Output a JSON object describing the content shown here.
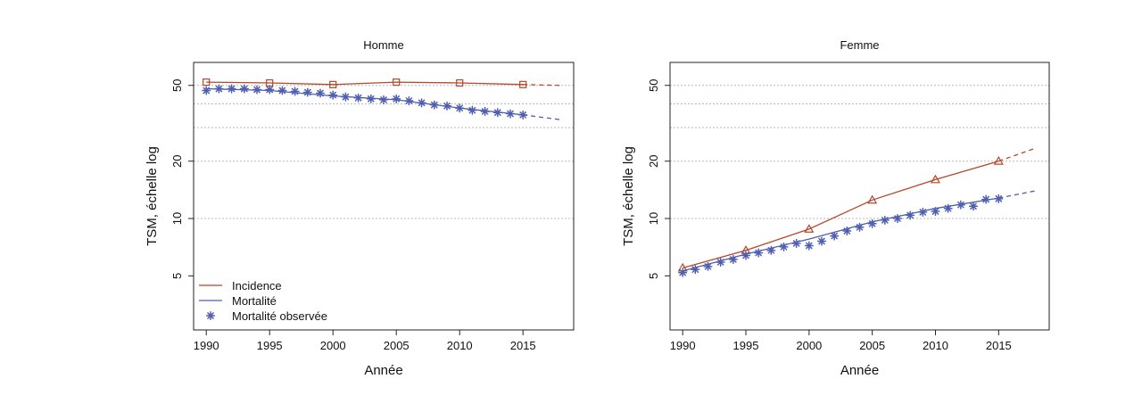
{
  "chart_data": [
    {
      "type": "line",
      "title": "Homme",
      "xlabel": "Année",
      "ylabel": "TSM, échelle log",
      "yscale": "log",
      "xlim": [
        1989,
        2019
      ],
      "ylim": [
        2.6,
        66
      ],
      "xticks": [
        "1990",
        "1995",
        "2000",
        "2005",
        "2010",
        "2015"
      ],
      "yticks": [
        "5",
        "10",
        "20",
        "50"
      ],
      "grid": true,
      "legend_position": "bottom-left",
      "legend": [
        "Incidence",
        "Mortalité",
        "Mortalité observée"
      ],
      "series": [
        {
          "name": "Incidence",
          "kind": "line",
          "color": "#b5472a",
          "marker": "square",
          "x": [
            1990,
            1995,
            2000,
            2005,
            2010,
            2015,
            2018
          ],
          "y": [
            52,
            51.5,
            50.5,
            52,
            51.5,
            50.5,
            50
          ],
          "marker_x": [
            1990,
            1995,
            2000,
            2005,
            2010,
            2015
          ],
          "projection_from": 2015
        },
        {
          "name": "Mortalité",
          "kind": "line",
          "color": "#4f5fb0",
          "x": [
            1990,
            1995,
            2000,
            2005,
            2010,
            2015,
            2018
          ],
          "y": [
            48,
            47,
            44,
            42,
            38,
            35,
            33
          ],
          "projection_from": 2015
        },
        {
          "name": "Mortalité observée",
          "kind": "points",
          "color": "#4f5fb0",
          "marker": "asterisk",
          "x": [
            1990,
            1991,
            1992,
            1993,
            1994,
            1995,
            1996,
            1997,
            1998,
            1999,
            2000,
            2001,
            2002,
            2003,
            2004,
            2005,
            2006,
            2007,
            2008,
            2009,
            2010,
            2011,
            2012,
            2013,
            2014,
            2015
          ],
          "y": [
            47,
            48,
            48,
            48,
            47.5,
            47.5,
            47,
            46.5,
            46,
            45.5,
            44.5,
            43.5,
            43,
            42.5,
            42,
            42.5,
            41.5,
            40.5,
            39.5,
            39,
            38,
            37,
            36.5,
            36,
            35.5,
            35
          ]
        }
      ]
    },
    {
      "type": "line",
      "title": "Femme",
      "xlabel": "Année",
      "ylabel": "TSM, échelle log",
      "yscale": "log",
      "xlim": [
        1989,
        2019
      ],
      "ylim": [
        2.6,
        66
      ],
      "xticks": [
        "1990",
        "1995",
        "2000",
        "2005",
        "2010",
        "2015"
      ],
      "yticks": [
        "5",
        "10",
        "20",
        "50"
      ],
      "grid": true,
      "series": [
        {
          "name": "Incidence",
          "kind": "line",
          "color": "#b5472a",
          "marker": "triangle",
          "x": [
            1990,
            1995,
            2000,
            2005,
            2010,
            2015,
            2018
          ],
          "y": [
            5.5,
            6.8,
            8.8,
            12.5,
            16,
            20,
            23.5
          ],
          "marker_x": [
            1990,
            1995,
            2000,
            2005,
            2010,
            2015
          ],
          "projection_from": 2015
        },
        {
          "name": "Mortalité",
          "kind": "line",
          "color": "#4f5fb0",
          "x": [
            1990,
            1995,
            2000,
            2005,
            2010,
            2015,
            2018
          ],
          "y": [
            5.3,
            6.5,
            7.8,
            9.6,
            11.3,
            12.8,
            14
          ],
          "projection_from": 2015
        },
        {
          "name": "Mortalité observée",
          "kind": "points",
          "color": "#4f5fb0",
          "marker": "asterisk",
          "x": [
            1990,
            1991,
            1992,
            1993,
            1994,
            1995,
            1996,
            1997,
            1998,
            1999,
            2000,
            2001,
            2002,
            2003,
            2004,
            2005,
            2006,
            2007,
            2008,
            2009,
            2010,
            2011,
            2012,
            2013,
            2014,
            2015
          ],
          "y": [
            5.2,
            5.4,
            5.6,
            5.9,
            6.1,
            6.4,
            6.6,
            6.8,
            7.1,
            7.4,
            7.2,
            7.6,
            8.1,
            8.6,
            9,
            9.4,
            9.8,
            10,
            10.4,
            10.8,
            10.9,
            11.3,
            11.8,
            11.6,
            12.6,
            12.7
          ]
        }
      ]
    }
  ]
}
